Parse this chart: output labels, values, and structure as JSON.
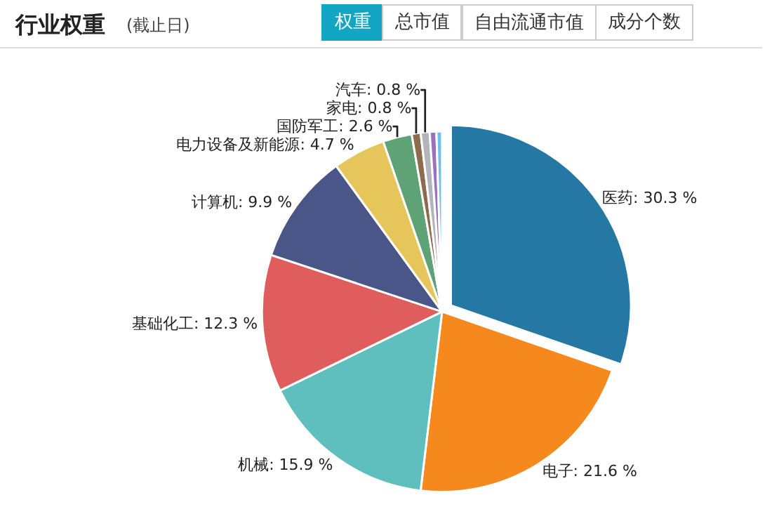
{
  "chart_data": {
    "type": "pie",
    "title": "行业权重",
    "subtitle": "(截止日)",
    "annotations": [
      "权重",
      "总市值",
      "自由流通市值",
      "成分个数"
    ],
    "categories": [
      "医药",
      "电子",
      "机械",
      "基础化工",
      "计算机",
      "电力设备及新能源",
      "国防军工",
      "家电",
      "汽车",
      null,
      null
    ],
    "values": [
      30.3,
      21.6,
      15.9,
      12.3,
      9.9,
      4.7,
      2.6,
      0.8,
      0.8,
      0.6,
      0.5
    ],
    "value_labels": [
      "30.3 %",
      "21.6 %",
      "15.9 %",
      "12.3 %",
      "9.9 %",
      "4.7 %",
      "2.6 %",
      "0.8 %",
      "0.8 %",
      null,
      null
    ],
    "colors": [
      "#2478a3",
      "#f5891d",
      "#5fbfbf",
      "#e05d5d",
      "#4a5588",
      "#e6c55a",
      "#5ea276",
      "#8b6c4e",
      "#b4b4bc",
      "#9a70c0",
      "#6ec0e8"
    ],
    "legend": false
  }
}
